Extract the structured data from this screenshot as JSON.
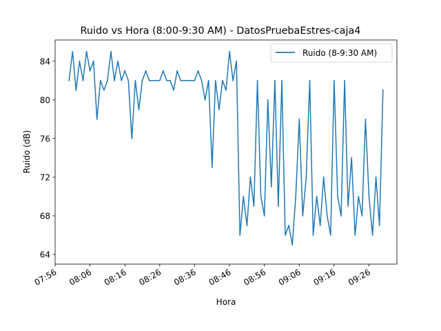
{
  "chart_data": {
    "type": "line",
    "title": "Ruido vs Hora (8:00-9:30 AM) - DatosPruebaEstres-caja4",
    "xlabel": "Hora",
    "ylabel": "Ruido (dB)",
    "xlim": [
      "07:56",
      "09:34"
    ],
    "ylim": [
      63.0,
      86.2
    ],
    "grid": false,
    "legend_position": "top-right",
    "x_ticks": [
      "07:56",
      "08:06",
      "08:16",
      "08:26",
      "08:36",
      "08:46",
      "08:56",
      "09:06",
      "09:16",
      "09:26"
    ],
    "y_ticks": [
      64,
      68,
      72,
      76,
      80,
      84
    ],
    "y_tick_labels": [
      "64",
      "68",
      "72",
      "76",
      "80",
      "84"
    ],
    "series": [
      {
        "name": "Ruido (8-9:30 AM)",
        "color": "#1f77b4",
        "x": [
          "08:00",
          "08:01",
          "08:02",
          "08:03",
          "08:04",
          "08:05",
          "08:06",
          "08:07",
          "08:08",
          "08:09",
          "08:10",
          "08:11",
          "08:12",
          "08:13",
          "08:14",
          "08:15",
          "08:16",
          "08:17",
          "08:18",
          "08:19",
          "08:20",
          "08:21",
          "08:22",
          "08:23",
          "08:24",
          "08:25",
          "08:26",
          "08:27",
          "08:28",
          "08:29",
          "08:30",
          "08:31",
          "08:32",
          "08:33",
          "08:34",
          "08:35",
          "08:36",
          "08:37",
          "08:38",
          "08:39",
          "08:40",
          "08:41",
          "08:42",
          "08:43",
          "08:44",
          "08:45",
          "08:46",
          "08:47",
          "08:48",
          "08:49",
          "08:50",
          "08:51",
          "08:52",
          "08:53",
          "08:54",
          "08:55",
          "08:56",
          "08:57",
          "08:58",
          "08:59",
          "09:00",
          "09:01",
          "09:02",
          "09:03",
          "09:04",
          "09:05",
          "09:06",
          "09:07",
          "09:08",
          "09:09",
          "09:10",
          "09:11",
          "09:12",
          "09:13",
          "09:14",
          "09:15",
          "09:16",
          "09:17",
          "09:18",
          "09:19",
          "09:20",
          "09:21",
          "09:22",
          "09:23",
          "09:24",
          "09:25",
          "09:26",
          "09:27",
          "09:28",
          "09:29",
          "09:30"
        ],
        "values": [
          82,
          85,
          81,
          84,
          82,
          85,
          83,
          84,
          78,
          82,
          81,
          82,
          85,
          82,
          84,
          82,
          83,
          82,
          76,
          82,
          79,
          82,
          83,
          82,
          82,
          82,
          82,
          83,
          82,
          82,
          81,
          83,
          82,
          82,
          82,
          82,
          82,
          83,
          82,
          80,
          82,
          73,
          82,
          79,
          82,
          81,
          85,
          82,
          84,
          66,
          70,
          67,
          72,
          69,
          82,
          70,
          68,
          80,
          71,
          82,
          69,
          82,
          66,
          67,
          65,
          70,
          78,
          68,
          72,
          82,
          66,
          70,
          67,
          72,
          68,
          66,
          82,
          70,
          68,
          82,
          69,
          74,
          66,
          70,
          68,
          78,
          70,
          66,
          72,
          67,
          81
        ]
      }
    ]
  }
}
